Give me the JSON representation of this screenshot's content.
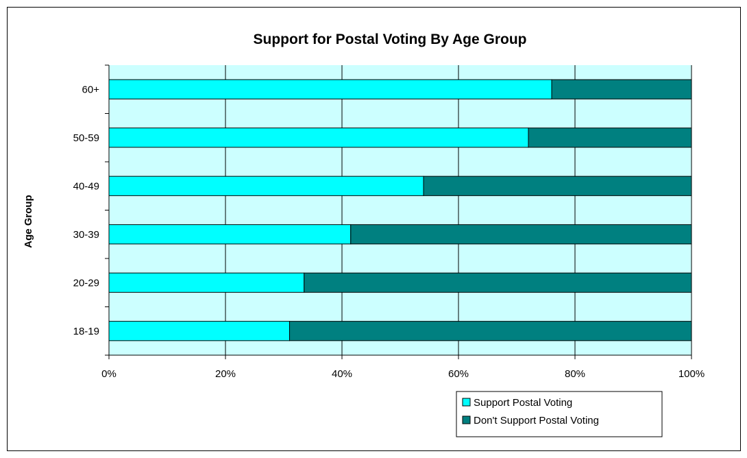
{
  "chart_data": {
    "type": "bar",
    "orientation": "horizontal",
    "stacked": true,
    "percent_stacked": true,
    "title": "Support for Postal Voting By Age Group",
    "xlabel": "",
    "ylabel": "Age Group",
    "categories": [
      "60+",
      "50-59",
      "40-49",
      "30-39",
      "20-29",
      "18-19"
    ],
    "series": [
      {
        "name": "Support Postal Voting",
        "values": [
          76,
          72,
          54,
          41.5,
          33.5,
          31
        ],
        "color": "#00FFFF"
      },
      {
        "name": "Don't Support Postal Voting",
        "values": [
          24,
          28,
          46,
          58.5,
          66.5,
          69
        ],
        "color": "#008080"
      }
    ],
    "x_ticks": [
      "0%",
      "20%",
      "40%",
      "60%",
      "80%",
      "100%"
    ],
    "xlim": [
      0,
      100
    ],
    "grid": true,
    "plot_background": "#CCFFFF",
    "legend_position": "bottom-right"
  }
}
